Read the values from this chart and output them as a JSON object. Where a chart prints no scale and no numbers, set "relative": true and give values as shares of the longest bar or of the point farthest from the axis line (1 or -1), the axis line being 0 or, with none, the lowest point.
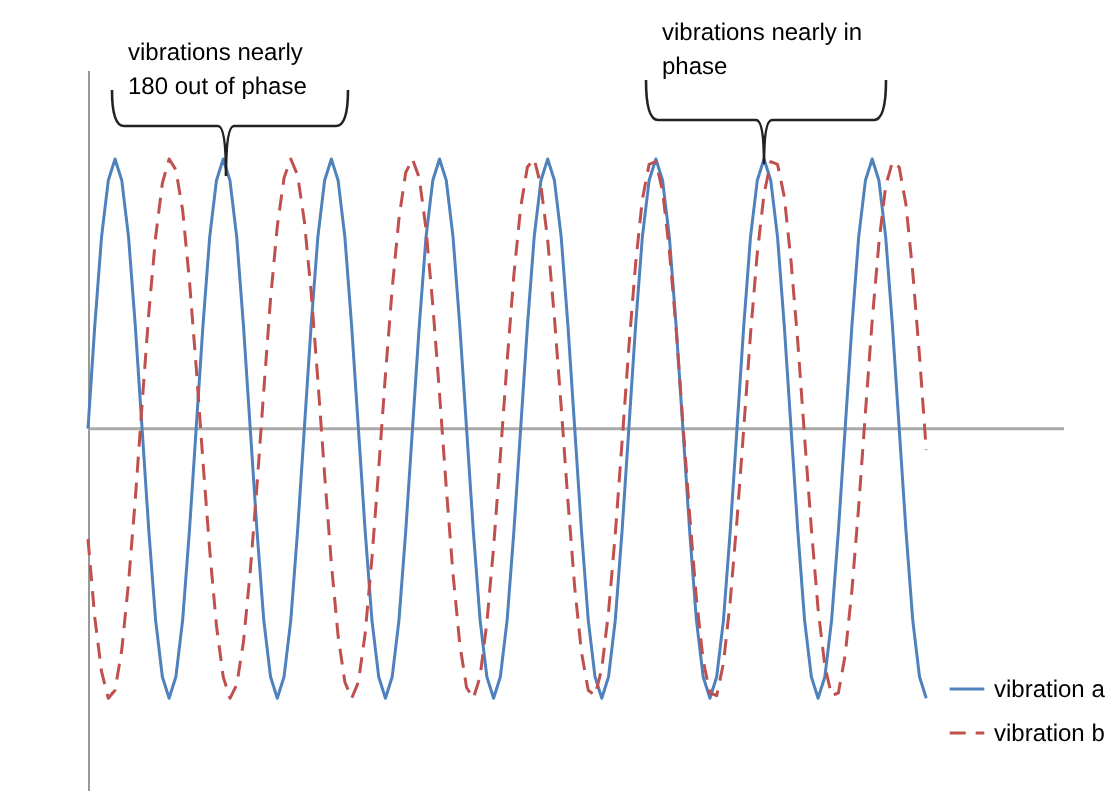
{
  "chart_data": {
    "type": "line",
    "relative": true,
    "legend": "bottom right",
    "grid": false,
    "marker": "none",
    "categories": [
      null,
      null,
      null,
      null,
      null,
      null,
      null,
      null,
      null,
      null,
      null,
      null,
      null,
      null,
      null,
      null,
      null,
      null,
      null,
      null,
      null,
      null,
      null,
      null,
      null,
      null,
      null,
      null,
      null,
      null,
      null,
      null,
      null,
      null,
      null,
      null,
      null,
      null,
      null,
      null,
      null,
      null,
      null,
      null,
      null,
      null,
      null,
      null,
      null,
      null,
      null,
      null,
      null,
      null,
      null,
      null,
      null,
      null,
      null,
      null,
      null,
      null,
      null,
      null,
      null,
      null,
      null,
      null,
      null,
      null,
      null,
      null,
      null,
      null,
      null,
      null,
      null,
      null,
      null,
      null,
      null,
      null,
      null,
      null,
      null,
      null,
      null,
      null,
      null,
      null,
      null,
      null,
      null,
      null,
      null,
      null,
      null,
      null,
      null,
      null,
      null,
      null,
      null,
      null,
      null,
      null,
      null,
      null,
      null,
      null,
      null,
      null,
      null,
      null,
      null,
      null,
      null,
      null,
      null,
      null,
      null,
      null,
      null,
      null,
      null
    ],
    "series": [
      {
        "name": "vibration a",
        "color": "#4f81bd",
        "line_style": "solid",
        "values": [
          0,
          0.38,
          0.71,
          0.92,
          1,
          0.92,
          0.71,
          0.38,
          0,
          -0.38,
          -0.71,
          -0.92,
          -1,
          -0.92,
          -0.71,
          -0.38,
          0,
          0.38,
          0.71,
          0.92,
          1,
          0.92,
          0.71,
          0.38,
          0,
          -0.38,
          -0.71,
          -0.92,
          -1,
          -0.92,
          -0.71,
          -0.38,
          0,
          0.38,
          0.71,
          0.92,
          1,
          0.92,
          0.71,
          0.38,
          0,
          -0.38,
          -0.71,
          -0.92,
          -1,
          -0.92,
          -0.71,
          -0.38,
          0,
          0.38,
          0.71,
          0.92,
          1,
          0.92,
          0.71,
          0.38,
          0,
          -0.38,
          -0.71,
          -0.92,
          -1,
          -0.92,
          -0.71,
          -0.38,
          0,
          0.38,
          0.71,
          0.92,
          1,
          0.92,
          0.71,
          0.38,
          0,
          -0.38,
          -0.71,
          -0.92,
          -1,
          -0.92,
          -0.71,
          -0.38,
          0,
          0.38,
          0.71,
          0.92,
          1,
          0.92,
          0.71,
          0.38,
          0,
          -0.38,
          -0.71,
          -0.92,
          -1,
          -0.92,
          -0.71,
          -0.38,
          0,
          0.38,
          0.71,
          0.92,
          1,
          0.92,
          0.71,
          0.38,
          0,
          -0.38,
          -0.71,
          -0.92,
          -1,
          -0.92,
          -0.71,
          -0.38,
          0,
          0.38,
          0.71,
          0.92,
          1,
          0.92,
          0.71,
          0.38,
          0,
          -0.38,
          -0.71,
          -0.92,
          -1
        ]
      },
      {
        "name": "vibration b",
        "color": "#c0504d",
        "line_style": "dashed",
        "values": [
          -0.41,
          -0.7,
          -0.9,
          -1,
          -0.97,
          -0.82,
          -0.57,
          -0.26,
          0.09,
          0.43,
          0.71,
          0.91,
          1,
          0.96,
          0.81,
          0.55,
          0.23,
          -0.12,
          -0.45,
          -0.73,
          -0.92,
          -1,
          -0.95,
          -0.79,
          -0.53,
          -0.21,
          0.14,
          0.48,
          0.75,
          0.93,
          1,
          0.94,
          0.77,
          0.51,
          0.18,
          -0.17,
          -0.5,
          -0.77,
          -0.94,
          -1,
          -0.94,
          -0.76,
          -0.48,
          -0.15,
          0.2,
          0.52,
          0.78,
          0.95,
          1,
          0.93,
          0.74,
          0.46,
          0.13,
          -0.22,
          -0.54,
          -0.8,
          -0.96,
          -1,
          -0.92,
          -0.72,
          -0.44,
          -0.1,
          0.25,
          0.57,
          0.82,
          0.97,
          1,
          0.9,
          0.7,
          0.41,
          0.08,
          -0.27,
          -0.59,
          -0.83,
          -0.97,
          -0.99,
          -0.89,
          -0.68,
          -0.39,
          -0.05,
          0.3,
          0.61,
          0.85,
          0.98,
          0.99,
          0.88,
          0.66,
          0.37,
          0.02,
          -0.32,
          -0.63,
          -0.86,
          -0.98,
          -0.99,
          -0.87,
          -0.64,
          -0.34,
          0,
          0.35,
          0.65,
          0.87,
          0.99,
          0.98,
          0.86,
          0.62,
          0.32,
          -0.03,
          -0.37,
          -0.67,
          -0.88,
          -0.99,
          -0.98,
          -0.84,
          -0.6,
          -0.29,
          0.06,
          0.4,
          0.69,
          0.9,
          0.99,
          0.97,
          0.83,
          0.58,
          0.27,
          -0.08
        ]
      }
    ],
    "annotations": [
      "vibrations nearly 180 out of phase",
      "vibrations nearly in phase"
    ]
  }
}
